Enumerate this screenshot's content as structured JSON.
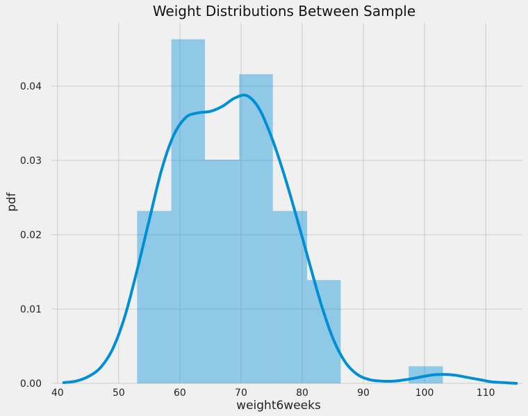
{
  "chart_data": {
    "type": "bar",
    "title": "Weight Distributions Between Sample",
    "xlabel": "weight6weeks",
    "ylabel": "pdf",
    "xlim": [
      39,
      116
    ],
    "ylim": [
      0,
      0.0485
    ],
    "x_ticks": [
      40,
      50,
      60,
      70,
      80,
      90,
      100,
      110
    ],
    "x_tick_labels": [
      "40",
      "50",
      "60",
      "70",
      "80",
      "90",
      "100",
      "110"
    ],
    "y_ticks": [
      0,
      0.01,
      0.02,
      0.03,
      0.04
    ],
    "y_tick_labels": [
      "0.00",
      "0.01",
      "0.02",
      "0.03",
      "0.04"
    ],
    "grid": true,
    "histogram": {
      "bin_edges": [
        53.0,
        58.6,
        64.1,
        69.7,
        75.2,
        80.8,
        86.3,
        91.9,
        97.4,
        103.0
      ],
      "density": [
        0.0232,
        0.0463,
        0.0301,
        0.0416,
        0.0232,
        0.0139,
        0.0,
        0.0,
        0.0023
      ],
      "color": "#008fd5",
      "opacity": 0.4
    },
    "kde": {
      "color": "#008fd5",
      "x": [
        41,
        43,
        45,
        47,
        49,
        51,
        53,
        55,
        57,
        59,
        61,
        63,
        65,
        67,
        69,
        71,
        73,
        75,
        77,
        79,
        81,
        83,
        85,
        87,
        89,
        91,
        93,
        95,
        97,
        99,
        101,
        103,
        105,
        107,
        109,
        111,
        113,
        115
      ],
      "y": [
        0.0001,
        0.0003,
        0.0009,
        0.0021,
        0.0046,
        0.009,
        0.0152,
        0.022,
        0.0287,
        0.0334,
        0.0358,
        0.0364,
        0.0366,
        0.0373,
        0.0384,
        0.0387,
        0.0369,
        0.0331,
        0.0282,
        0.0226,
        0.0167,
        0.0109,
        0.0061,
        0.0029,
        0.0012,
        0.0005,
        0.0003,
        0.0003,
        0.0005,
        0.0008,
        0.0011,
        0.0012,
        0.0011,
        0.0008,
        0.0005,
        0.0002,
        0.0001,
        0.0
      ]
    }
  }
}
